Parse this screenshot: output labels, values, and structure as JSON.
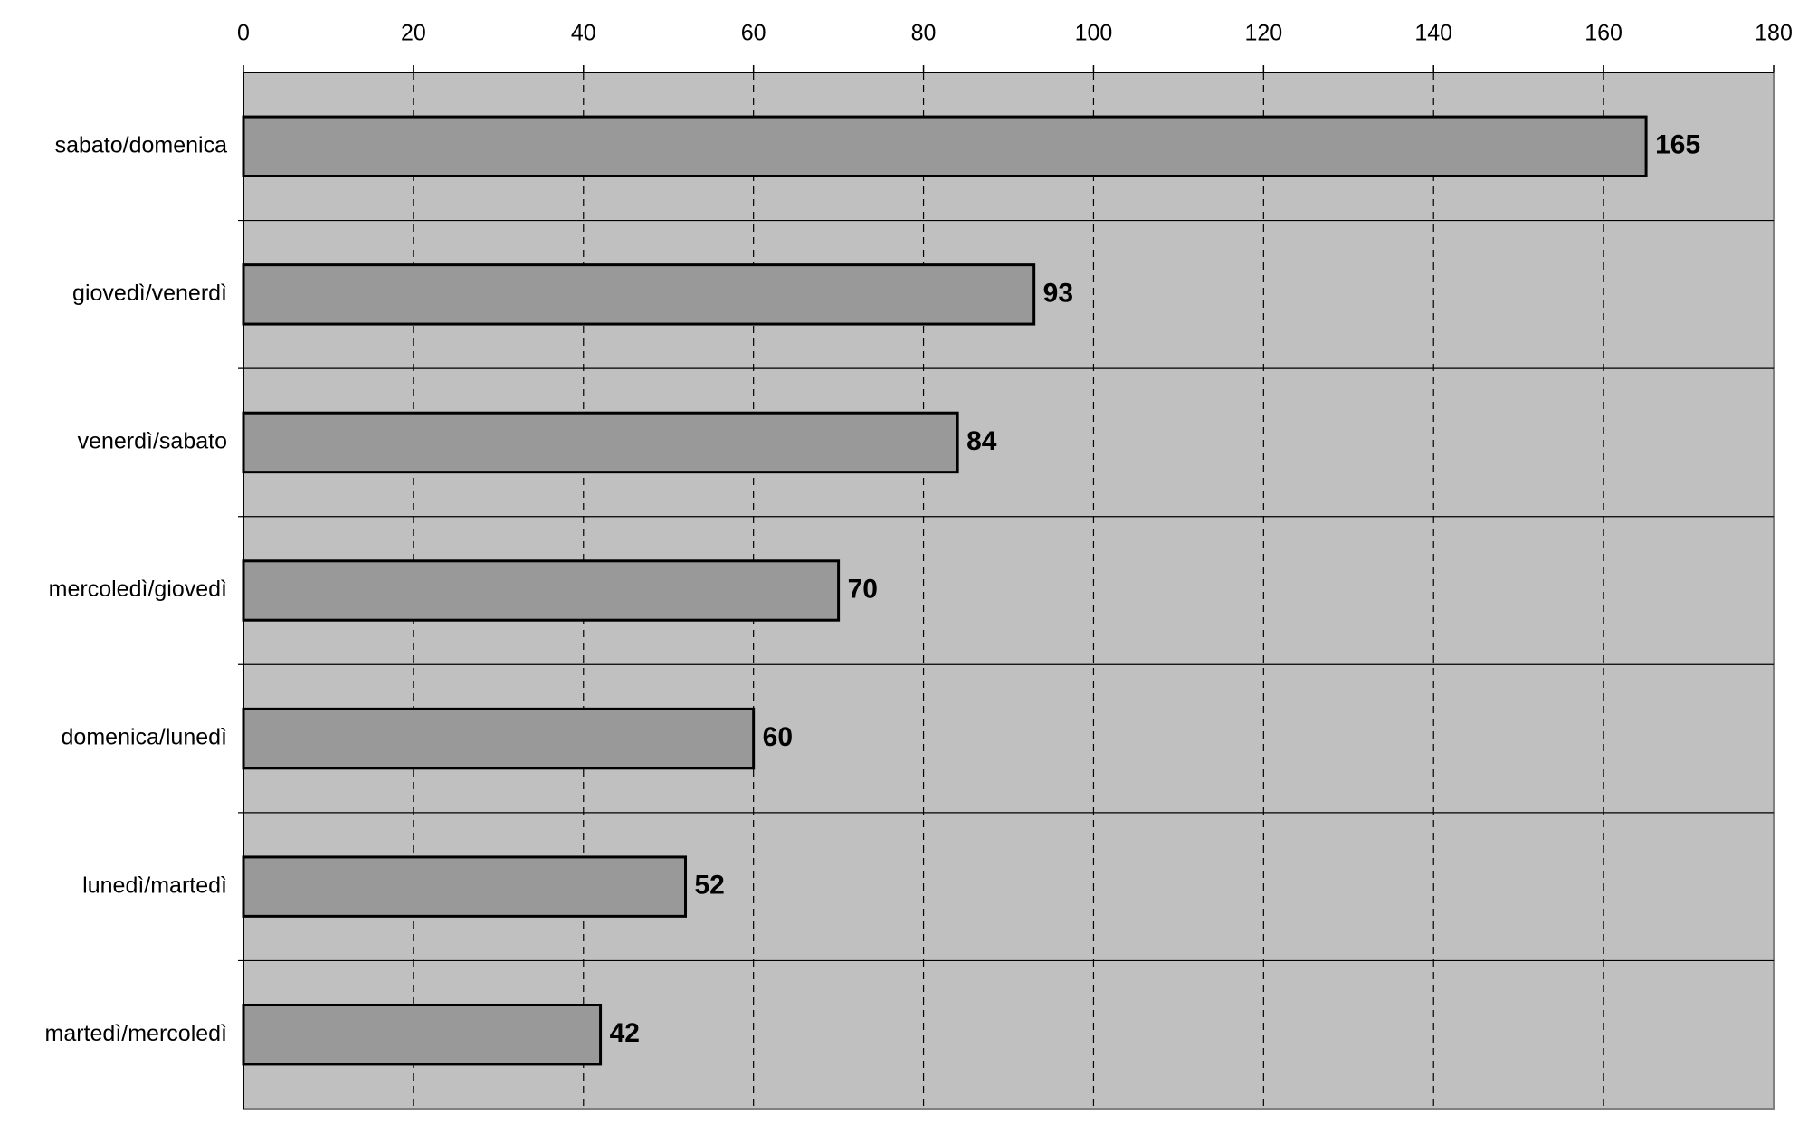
{
  "chart_data": {
    "type": "bar",
    "orientation": "horizontal",
    "categories": [
      "sabato/domenica",
      "giovedì/venerdì",
      "venerdì/sabato",
      "mercoledì/giovedì",
      "domenica/lunedì",
      "lunedì/martedì",
      "martedì/mercoledì"
    ],
    "values": [
      165,
      93,
      84,
      70,
      60,
      52,
      42
    ],
    "color": "#999999",
    "background": "#c0c0c0",
    "xlim": [
      0,
      180
    ],
    "xticks": [
      0,
      20,
      40,
      60,
      80,
      100,
      120,
      140,
      160,
      180
    ],
    "grid": true,
    "data_labels": true
  }
}
